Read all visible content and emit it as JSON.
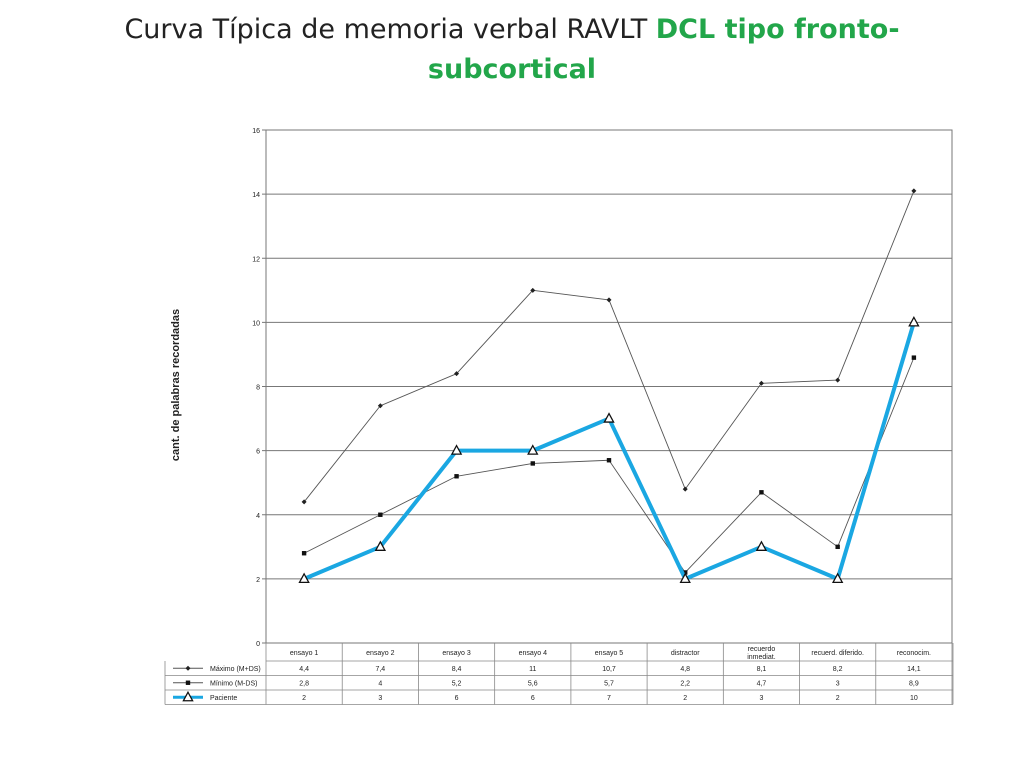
{
  "slide": {
    "title_main": "Curva  Típica de memoria verbal  RAVLT   ",
    "title_accent_line1": "DCL  tipo fronto-",
    "title_accent_line2": "subcortical"
  },
  "chart_data": {
    "type": "line",
    "title": "",
    "xlabel": "",
    "ylabel": "cant. de palabras recordadas",
    "ylim": [
      0,
      16
    ],
    "yticks": [
      0,
      2,
      4,
      6,
      8,
      10,
      12,
      14,
      16
    ],
    "grid": true,
    "legend_placement": "data table below plot",
    "categories": [
      "ensayo 1",
      "ensayo 2",
      "ensayo 3",
      "ensayo 4",
      "ensayo 5",
      "distractor",
      "recuerdo inmediat.",
      "recuerd. diferido.",
      "reconocim."
    ],
    "category_label_lines": [
      [
        "ensayo 1"
      ],
      [
        "ensayo 2"
      ],
      [
        "ensayo 3"
      ],
      [
        "ensayo 4"
      ],
      [
        "ensayo 5"
      ],
      [
        "distractor"
      ],
      [
        "recuerdo",
        "inmediat."
      ],
      [
        "recuerd. diferido."
      ],
      [
        "reconocim."
      ]
    ],
    "series": [
      {
        "name": "Máximo (M+DS)",
        "values": [
          4.4,
          7.4,
          8.4,
          11,
          10.7,
          4.8,
          8.1,
          8.2,
          14.1
        ],
        "labels": [
          "4,4",
          "7,4",
          "8,4",
          "11",
          "10,7",
          "4,8",
          "8,1",
          "8,2",
          "14,1"
        ],
        "color": "#555555",
        "marker": "diamond"
      },
      {
        "name": "Mínimo (M-DS)",
        "values": [
          2.8,
          4,
          5.2,
          5.6,
          5.7,
          2.2,
          4.7,
          3,
          8.9
        ],
        "labels": [
          "2,8",
          "4",
          "5,2",
          "5,6",
          "5,7",
          "2,2",
          "4,7",
          "3",
          "8,9"
        ],
        "color": "#555555",
        "marker": "square"
      },
      {
        "name": "Paciente",
        "values": [
          2,
          3,
          6,
          6,
          7,
          2,
          3,
          2,
          10
        ],
        "labels": [
          "2",
          "3",
          "6",
          "6",
          "7",
          "2",
          "3",
          "2",
          "10"
        ],
        "color": "#1aa7e2",
        "marker": "triangle"
      }
    ]
  }
}
